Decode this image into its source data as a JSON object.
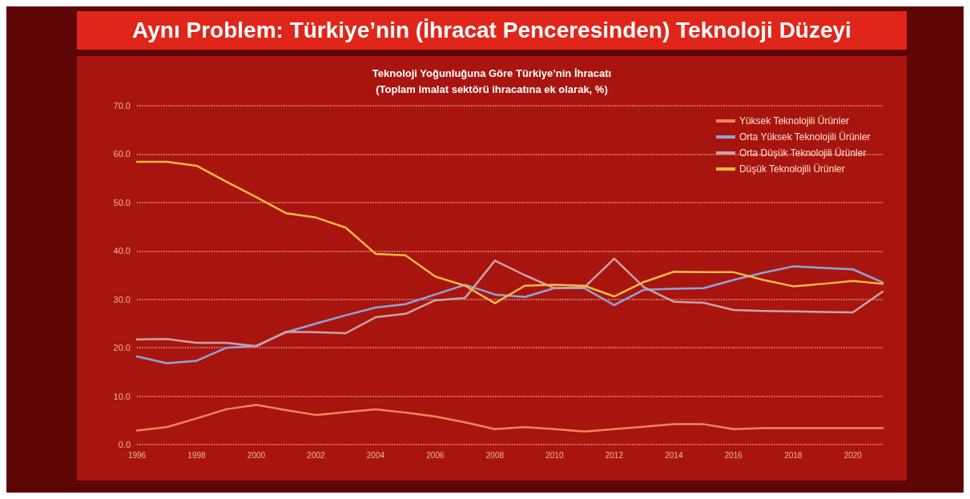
{
  "chart_data": {
    "type": "line",
    "title": "Aynı Problem: Türkiye’nin (İhracat Penceresinden) Teknoloji Düzeyi",
    "subtitle": "Teknoloji Yoğunluğuna Göre Türkiye’nin İhracatı\n(Toplam imalat sektörü ihracatına ek olarak, %)",
    "x": [
      1996,
      1997,
      1998,
      1999,
      2000,
      2001,
      2002,
      2003,
      2004,
      2005,
      2006,
      2007,
      2008,
      2009,
      2010,
      2011,
      2012,
      2013,
      2014,
      2015,
      2016,
      2017,
      2018,
      2019,
      2020,
      2021
    ],
    "series": [
      {
        "name": "Yüksek Teknolojili Ürünler",
        "color": "#f4845a",
        "values": [
          2.9,
          3.6,
          5.4,
          7.3,
          8.2,
          7.1,
          6.1,
          6.7,
          7.3,
          6.6,
          5.8,
          4.6,
          3.2,
          3.6,
          3.2,
          2.7,
          3.2,
          3.7,
          4.2,
          4.2,
          3.2,
          3.4,
          3.4,
          3.4,
          3.4,
          3.4
        ]
      },
      {
        "name": "Orta Yüksek Teknolojili Ürünler",
        "color": "#8fa3d8",
        "values": [
          18.2,
          16.8,
          17.3,
          20.0,
          20.4,
          23.2,
          25.0,
          26.7,
          28.3,
          29.0,
          31.0,
          33.0,
          31.0,
          30.5,
          32.3,
          32.3,
          28.8,
          32.0,
          32.2,
          32.3,
          34.0,
          35.5,
          36.8,
          36.5,
          36.2,
          33.5
        ]
      },
      {
        "name": "Orta Düşük Teknolojili Ürünler",
        "color": "#c9a3a8",
        "values": [
          21.7,
          21.8,
          21.0,
          21.0,
          20.3,
          23.3,
          23.2,
          23.0,
          26.3,
          27.0,
          29.8,
          30.3,
          38.0,
          35.0,
          32.3,
          32.5,
          38.4,
          32.5,
          29.5,
          29.3,
          27.8,
          27.6,
          27.5,
          27.4,
          27.3,
          31.6
        ]
      },
      {
        "name": "Düşük Teknolojili Ürünler",
        "color": "#f5b942",
        "values": [
          58.4,
          58.4,
          57.6,
          54.3,
          51.1,
          47.8,
          46.9,
          44.8,
          39.4,
          39.1,
          34.7,
          32.8,
          29.2,
          32.8,
          33.0,
          32.8,
          30.6,
          33.6,
          35.7,
          35.6,
          35.6,
          34.0,
          32.7,
          33.2,
          33.8,
          33.2
        ]
      }
    ],
    "xlim": [
      1996,
      2021
    ],
    "xticks": [
      1996,
      1998,
      2000,
      2002,
      2004,
      2006,
      2008,
      2010,
      2012,
      2014,
      2016,
      2018,
      2020
    ],
    "ylim": [
      0,
      70
    ],
    "yticks": [
      {
        "value": 0,
        "label": "0.0"
      },
      {
        "value": 10,
        "label": "10.0"
      },
      {
        "value": 20,
        "label": "20.0"
      },
      {
        "value": 30,
        "label": "30.0"
      },
      {
        "value": 40,
        "label": "40.0"
      },
      {
        "value": 50,
        "label": "50.0"
      },
      {
        "value": 60,
        "label": "60.0"
      },
      {
        "value": 70,
        "label": "70.0"
      }
    ],
    "grid": "y",
    "legend": "top right",
    "marker": "none",
    "line_style": "solid"
  }
}
